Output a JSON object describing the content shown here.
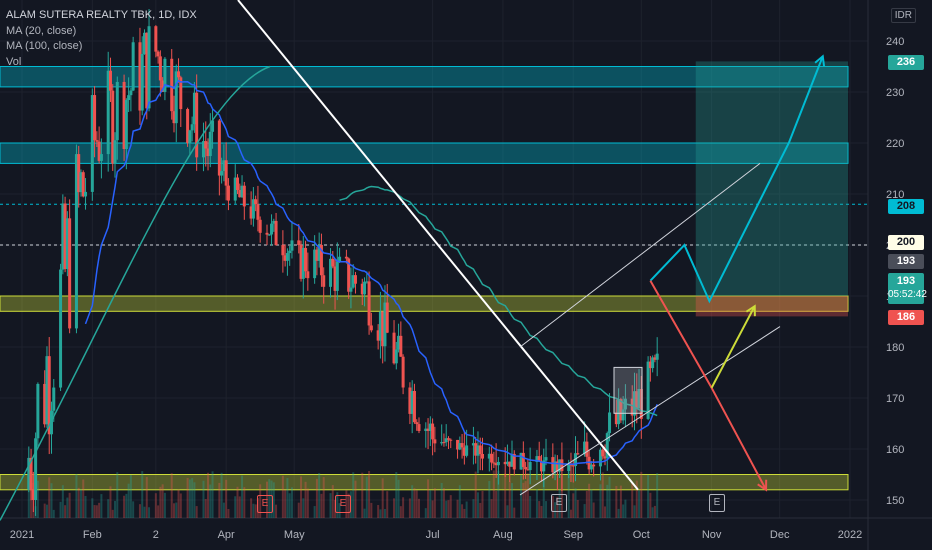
{
  "header": {
    "title": "ALAM SUTERA REALTY TBK, 1D, IDX",
    "indicators": [
      "MA (20, close)",
      "MA (100, close)",
      "Vol"
    ]
  },
  "axis": {
    "currency": "IDR",
    "y_ticks": [
      "240",
      "230",
      "220",
      "210",
      "200",
      "190",
      "180",
      "170",
      "160",
      "150"
    ],
    "x_ticks": [
      "2021",
      "Feb",
      "2",
      "Apr",
      "May",
      "Jul",
      "Aug",
      "Sep",
      "Oct",
      "Nov",
      "Dec",
      "2022"
    ]
  },
  "price_labels": {
    "target": "236",
    "level_208": "208",
    "level_200": "200",
    "prev_close": "193",
    "last": "193",
    "countdown": "05:52:42",
    "stop": "186"
  },
  "earnings_markers": [
    "E",
    "E",
    "E",
    "E"
  ],
  "colors": {
    "background": "#131722",
    "up": "#26a69a",
    "down": "#ef5350",
    "ma20": "#2962ff",
    "ma100": "#26a69a",
    "cyan_zone": "#00bcd4",
    "yellow_zone": "#cddc39",
    "projection_up": "#00bcd4",
    "projection_down": "#ef5350",
    "projection_alt": "#cddc39"
  },
  "chart_data": {
    "type": "candlestick",
    "title": "ALAM SUTERA REALTY TBK, 1D, IDX",
    "x_range": [
      "2021-01-01",
      "2022-01-01"
    ],
    "ylim": [
      148,
      248
    ],
    "monthly_ohlc": [
      {
        "x": "2021-01",
        "open": 152,
        "high": 248,
        "low": 150,
        "close": 220
      },
      {
        "x": "2021-02",
        "open": 220,
        "high": 245,
        "low": 186,
        "close": 238
      },
      {
        "x": "2021-03",
        "open": 238,
        "high": 248,
        "low": 205,
        "close": 212
      },
      {
        "x": "2021-04",
        "open": 212,
        "high": 214,
        "low": 196,
        "close": 198
      },
      {
        "x": "2021-05",
        "open": 198,
        "high": 200,
        "low": 172,
        "close": 192
      },
      {
        "x": "2021-06",
        "open": 192,
        "high": 193,
        "low": 160,
        "close": 162
      },
      {
        "x": "2021-07",
        "open": 162,
        "high": 163,
        "low": 154,
        "close": 158
      },
      {
        "x": "2021-08",
        "open": 158,
        "high": 162,
        "low": 152,
        "close": 156
      },
      {
        "x": "2021-09",
        "open": 156,
        "high": 187,
        "low": 156,
        "close": 170
      },
      {
        "x": "2021-10",
        "open": 170,
        "high": 193,
        "low": 164,
        "close": 193
      }
    ],
    "zones": [
      {
        "color": "cyan",
        "from": 231,
        "to": 235
      },
      {
        "color": "cyan",
        "from": 216,
        "to": 220
      },
      {
        "color": "yellow",
        "from": 187,
        "to": 190
      },
      {
        "color": "yellow",
        "from": 152,
        "to": 155
      }
    ],
    "lines": [
      {
        "name": "MA (20, close)",
        "color": "#2962ff"
      },
      {
        "name": "MA (100, close)",
        "color": "#26a69a"
      }
    ],
    "horizontal_levels": [
      208,
      200
    ],
    "projections": [
      {
        "path": [
          [
            "2021-10-05",
            193
          ],
          [
            "2021-10-20",
            200
          ],
          [
            "2021-10-31",
            189
          ],
          [
            "2021-12-05",
            220
          ],
          [
            "2021-12-20",
            237
          ]
        ],
        "color": "cyan"
      },
      {
        "path": [
          [
            "2021-10-05",
            193
          ],
          [
            "2021-11-01",
            172
          ],
          [
            "2021-11-25",
            152
          ]
        ],
        "color": "red"
      },
      {
        "path": [
          [
            "2021-11-01",
            172
          ],
          [
            "2021-11-20",
            188
          ]
        ],
        "color": "yellow"
      }
    ]
  }
}
